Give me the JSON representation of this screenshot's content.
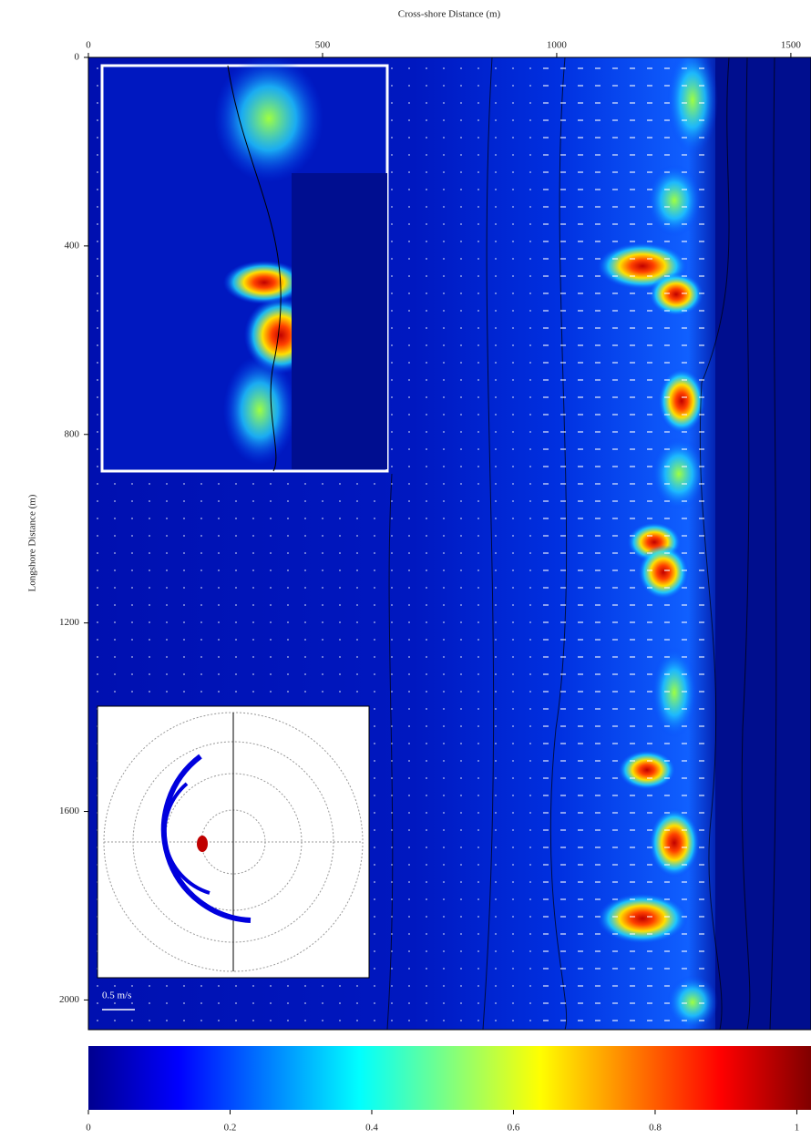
{
  "chart_data": {
    "type": "heatmap",
    "x_label": "Cross-shore Distance (m)",
    "y_label": "Longshore Distance (m)",
    "xlim": [
      0,
      1543
    ],
    "xticks": [
      0,
      500,
      1000,
      1500
    ],
    "ylim": [
      0,
      2063
    ],
    "yticks": [
      0,
      400,
      800,
      1200,
      1600,
      2000
    ],
    "y_inverted": true,
    "colormap": "jet",
    "colorbar": {
      "lim": [
        0,
        1.02
      ],
      "ticks": [
        0,
        0.2,
        0.4,
        0.6,
        0.8,
        1
      ]
    },
    "annotations": [
      "0.5 m/s"
    ]
  }
}
